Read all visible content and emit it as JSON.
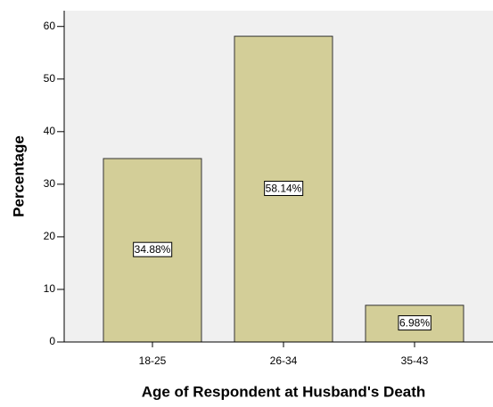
{
  "chart_data": {
    "type": "bar",
    "x_label": "Age of Respondent at Husband's Death",
    "y_label": "Percentage",
    "categories": [
      "18-25",
      "26-34",
      "35-43"
    ],
    "values": [
      34.88,
      58.14,
      6.98
    ],
    "value_labels": [
      "34.88%",
      "58.14%",
      "6.98%"
    ],
    "color": "#d3ce98",
    "ylim": [
      0,
      63
    ],
    "yticks": [
      0,
      10,
      20,
      30,
      40,
      50,
      60
    ],
    "grid": false
  }
}
